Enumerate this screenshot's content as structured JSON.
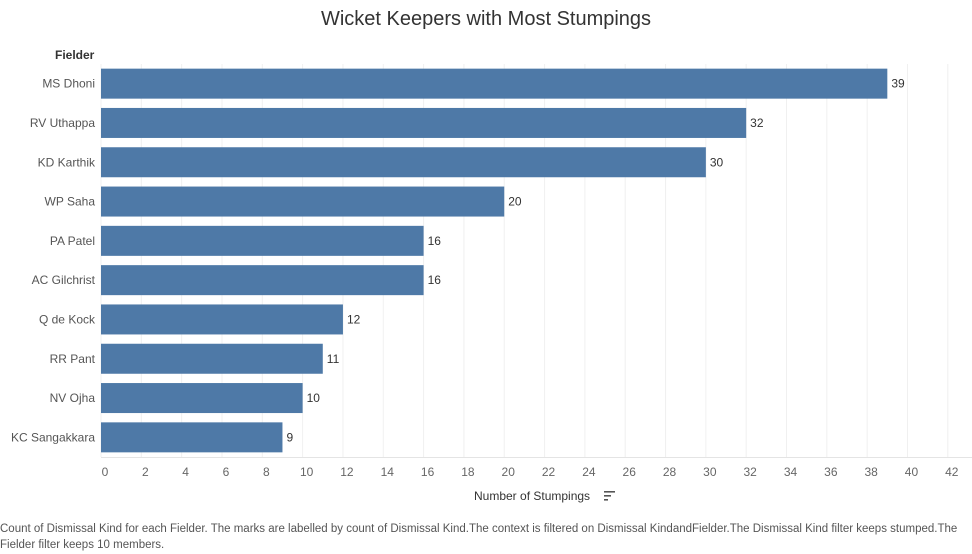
{
  "chart_data": {
    "type": "bar",
    "orientation": "horizontal",
    "title": "Wicket Keepers with Most Stumpings",
    "row_header": "Fielder",
    "xlabel": "Number of Stumpings",
    "categories": [
      "MS Dhoni",
      "RV Uthappa",
      "KD Karthik",
      "WP Saha",
      "PA Patel",
      "AC Gilchrist",
      "Q de Kock",
      "RR Pant",
      "NV Ojha",
      "KC Sangakkara"
    ],
    "values": [
      39,
      32,
      30,
      20,
      16,
      16,
      12,
      11,
      10,
      9
    ],
    "xlim": [
      0,
      42
    ],
    "xticks": [
      0,
      2,
      4,
      6,
      8,
      10,
      12,
      14,
      16,
      18,
      20,
      22,
      24,
      26,
      28,
      30,
      32,
      34,
      36,
      38,
      40,
      42
    ],
    "bar_color": "#4e79a7",
    "grid": "vertical",
    "data_labels": true
  },
  "caption": "Count of Dismissal Kind for each Fielder. The marks are labelled by count of Dismissal Kind.The context is filtered on Dismissal KindandFielder.The Dismissal Kind filter keeps stumped.The Fielder filter keeps 10 members.",
  "icons": {
    "sort": "sort-descending-icon"
  }
}
